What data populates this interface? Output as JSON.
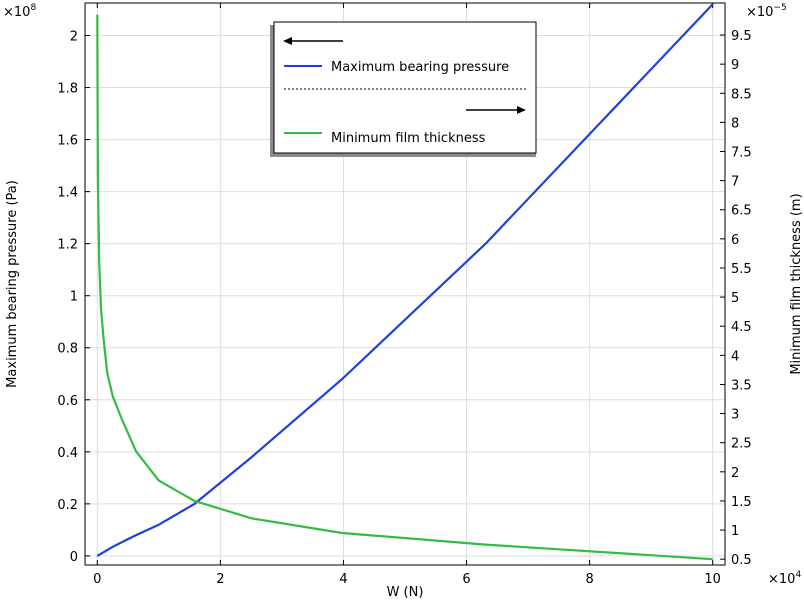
{
  "chart_data": {
    "type": "line",
    "xlabel": "W (N)",
    "ylabel": "Maximum bearing pressure (Pa)",
    "y2label": "Minimum film thickness (m)",
    "x_multiplier": "×10",
    "x_multiplier_exp": "4",
    "y_multiplier": "×10",
    "y_multiplier_exp": "8",
    "y2_multiplier": "×10",
    "y2_multiplier_exp": "−5",
    "xlim": [
      -0.2,
      10.2
    ],
    "ylim": [
      -0.035,
      2.125
    ],
    "y2lim": [
      0.4,
      10.05
    ],
    "xticks": [
      0,
      2,
      4,
      6,
      8,
      10
    ],
    "yticks": [
      0,
      0.2,
      0.4,
      0.6,
      0.8,
      1,
      1.2,
      1.4,
      1.6,
      1.8,
      2
    ],
    "y2ticks": [
      0.5,
      1,
      1.5,
      2,
      2.5,
      3,
      3.5,
      4,
      4.5,
      5,
      5.5,
      6,
      6.5,
      7,
      7.5,
      8,
      8.5,
      9,
      9.5
    ],
    "grid": true,
    "legend_position": "top-center",
    "series": [
      {
        "name": "Maximum bearing pressure",
        "axis": "left",
        "color": "#1f3fe0",
        "x": [
          0,
          0.25,
          0.63,
          1.0,
          1.58,
          2.51,
          3.98,
          6.31,
          10
        ],
        "y": [
          0,
          0.035,
          0.08,
          0.12,
          0.2,
          0.38,
          0.68,
          1.2,
          2.12
        ]
      },
      {
        "name": "Minimum film thickness",
        "axis": "right",
        "color": "#33bb44",
        "x": [
          0,
          0.01,
          0.03,
          0.06,
          0.1,
          0.16,
          0.25,
          0.4,
          0.63,
          1.0,
          1.58,
          2.51,
          3.98,
          6.31,
          10
        ],
        "y": [
          9.85,
          7.0,
          5.6,
          4.8,
          4.3,
          3.7,
          3.3,
          2.9,
          2.35,
          1.85,
          1.5,
          1.2,
          0.95,
          0.75,
          0.5
        ]
      }
    ]
  }
}
